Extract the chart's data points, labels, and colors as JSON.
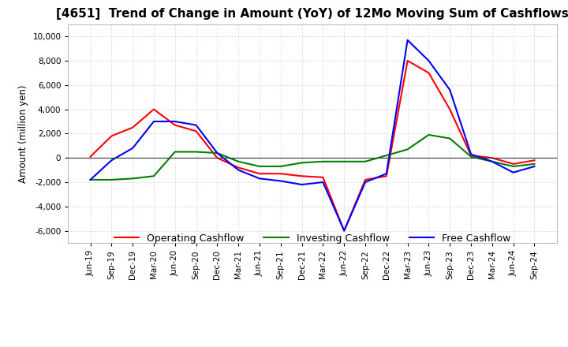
{
  "title": "[4651]  Trend of Change in Amount (YoY) of 12Mo Moving Sum of Cashflows",
  "ylabel": "Amount (million yen)",
  "ylim": [
    -7000,
    11000
  ],
  "yticks": [
    -6000,
    -4000,
    -2000,
    0,
    2000,
    4000,
    6000,
    8000,
    10000
  ],
  "background_color": "#ffffff",
  "grid_color": "#bbbbbb",
  "x_labels": [
    "Jun-19",
    "Sep-19",
    "Dec-19",
    "Mar-20",
    "Jun-20",
    "Sep-20",
    "Dec-20",
    "Mar-21",
    "Jun-21",
    "Sep-21",
    "Dec-21",
    "Mar-22",
    "Jun-22",
    "Sep-22",
    "Dec-22",
    "Mar-23",
    "Jun-23",
    "Sep-23",
    "Dec-23",
    "Mar-24",
    "Jun-24",
    "Sep-24"
  ],
  "operating": [
    100,
    1800,
    2500,
    4000,
    2700,
    2200,
    0,
    -800,
    -1300,
    -1300,
    -1500,
    -1600,
    -6000,
    -1800,
    -1500,
    8000,
    7000,
    4000,
    200,
    0,
    -500,
    -200
  ],
  "investing": [
    -1800,
    -1800,
    -1700,
    -1500,
    500,
    500,
    400,
    -300,
    -700,
    -700,
    -400,
    -300,
    -300,
    -300,
    200,
    700,
    1900,
    1600,
    100,
    -300,
    -700,
    -500
  ],
  "free": [
    -1800,
    -200,
    800,
    3000,
    3000,
    2700,
    400,
    -1000,
    -1700,
    -1900,
    -2200,
    -2000,
    -6000,
    -2000,
    -1300,
    9700,
    8000,
    5600,
    300,
    -300,
    -1200,
    -700
  ],
  "operating_color": "#ff0000",
  "investing_color": "#008000",
  "free_color": "#0000ff",
  "title_fontsize": 11,
  "linewidth": 1.5,
  "legend_labels": [
    "Operating Cashflow",
    "Investing Cashflow",
    "Free Cashflow"
  ]
}
